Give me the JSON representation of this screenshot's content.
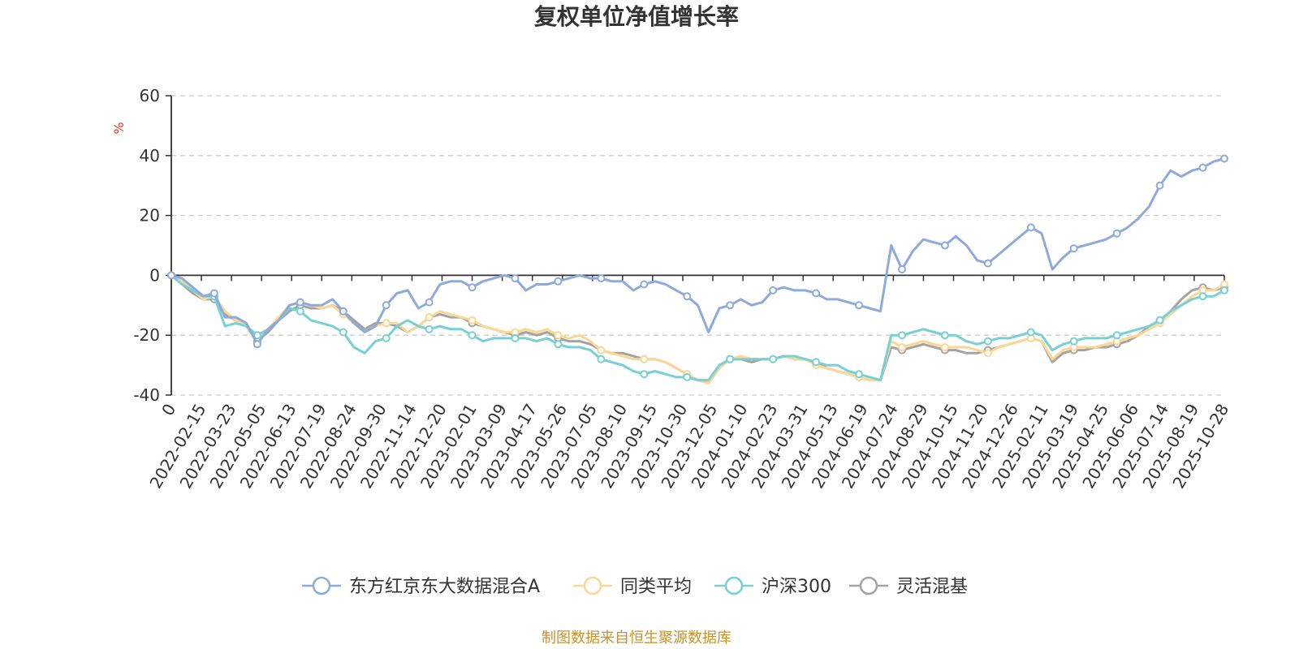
{
  "chart_data": {
    "type": "line",
    "title": "复权单位净值增长率",
    "y_unit": "%",
    "ylim": [
      -40,
      60
    ],
    "y_ticks": [
      -40,
      -20,
      0,
      20,
      40,
      60
    ],
    "grid": true,
    "legend_position": "bottom",
    "x_tick_labels": [
      "0",
      "2022-02-15",
      "2022-03-23",
      "2022-05-05",
      "2022-06-13",
      "2022-07-19",
      "2022-08-24",
      "2022-09-30",
      "2022-11-14",
      "2022-12-20",
      "2023-02-01",
      "2023-03-09",
      "2023-04-17",
      "2023-05-26",
      "2023-07-05",
      "2023-08-10",
      "2023-09-15",
      "2023-10-30",
      "2023-12-05",
      "2024-01-10",
      "2024-02-23",
      "2024-03-31",
      "2024-05-13",
      "2024-06-19",
      "2024-07-24",
      "2024-08-29",
      "2024-10-15",
      "2024-11-20",
      "2024-12-26",
      "2025-02-11",
      "2025-03-19",
      "2025-04-25",
      "2025-06-06",
      "2025-07-14",
      "2025-08-19",
      "2025-10-28"
    ],
    "series": [
      {
        "name": "东方红京东大数据混合A",
        "color": "#8eaadb",
        "values": [
          0,
          -1,
          -4,
          -7,
          -6,
          -14,
          -14,
          -16,
          -23,
          -18,
          -15,
          -10,
          -9,
          -10,
          -10,
          -8,
          -12,
          -16,
          -19,
          -17,
          -10,
          -6,
          -5,
          -11,
          -9,
          -3,
          -2,
          -2,
          -4,
          -2,
          -1,
          0,
          -1,
          -5,
          -3,
          -3,
          -2,
          -1,
          0,
          -1,
          -1,
          -2,
          -2,
          -5,
          -3,
          -2,
          -3,
          -5,
          -7,
          -10,
          -19,
          -11,
          -10,
          -8,
          -10,
          -9,
          -5,
          -4,
          -5,
          -5,
          -6,
          -8,
          -8,
          -9,
          -10,
          -11,
          -12,
          10,
          2,
          8,
          12,
          11,
          10,
          13,
          10,
          5,
          4,
          7,
          10,
          13,
          16,
          14,
          2,
          6,
          9,
          10,
          11,
          12,
          14,
          16,
          19,
          23,
          30,
          35,
          33,
          35,
          36,
          38,
          39
        ]
      },
      {
        "name": "同类平均",
        "color": "#fad795",
        "values": [
          0,
          -2,
          -5,
          -8,
          -7,
          -12,
          -15,
          -17,
          -21,
          -18,
          -14,
          -10,
          -9,
          -10,
          -11,
          -10,
          -13,
          -16,
          -19,
          -17,
          -16,
          -16,
          -19,
          -17,
          -14,
          -12,
          -13,
          -14,
          -15,
          -17,
          -18,
          -19,
          -19,
          -18,
          -19,
          -18,
          -20,
          -21,
          -20,
          -22,
          -25,
          -26,
          -27,
          -28,
          -28,
          -28,
          -29,
          -31,
          -33,
          -35,
          -36,
          -31,
          -28,
          -27,
          -28,
          -28,
          -28,
          -27,
          -28,
          -28,
          -30,
          -31,
          -32,
          -33,
          -34,
          -35,
          -35,
          -22,
          -24,
          -23,
          -22,
          -23,
          -24,
          -24,
          -24,
          -25,
          -26,
          -24,
          -23,
          -22,
          -21,
          -22,
          -28,
          -25,
          -24,
          -24,
          -24,
          -23,
          -22,
          -21,
          -20,
          -18,
          -16,
          -13,
          -10,
          -7,
          -5,
          -5,
          -3
        ]
      },
      {
        "name": "沪深300",
        "color": "#76d0d4",
        "values": [
          0,
          -3,
          -5,
          -7,
          -7,
          -17,
          -16,
          -17,
          -20,
          -18,
          -15,
          -11,
          -12,
          -15,
          -16,
          -17,
          -19,
          -24,
          -26,
          -22,
          -21,
          -17,
          -15,
          -17,
          -18,
          -17,
          -18,
          -18,
          -20,
          -22,
          -21,
          -21,
          -21,
          -21,
          -22,
          -21,
          -23,
          -24,
          -24,
          -25,
          -28,
          -29,
          -30,
          -32,
          -33,
          -32,
          -33,
          -34,
          -34,
          -35,
          -35,
          -30,
          -28,
          -28,
          -28,
          -28,
          -28,
          -27,
          -27,
          -28,
          -29,
          -30,
          -30,
          -32,
          -33,
          -34,
          -35,
          -20,
          -20,
          -19,
          -18,
          -19,
          -20,
          -20,
          -22,
          -23,
          -22,
          -21,
          -21,
          -20,
          -19,
          -20,
          -25,
          -23,
          -22,
          -21,
          -21,
          -21,
          -20,
          -19,
          -18,
          -17,
          -15,
          -12,
          -10,
          -8,
          -7,
          -7,
          -5
        ]
      },
      {
        "name": "灵活混基",
        "color": "#a3a3a3",
        "values": [
          0,
          -3,
          -6,
          -8,
          -8,
          -13,
          -15,
          -17,
          -22,
          -19,
          -15,
          -12,
          -10,
          -11,
          -11,
          -10,
          -12,
          -15,
          -18,
          -16,
          -16,
          -17,
          -19,
          -17,
          -14,
          -13,
          -14,
          -14,
          -16,
          -17,
          -18,
          -19,
          -20,
          -19,
          -20,
          -19,
          -21,
          -22,
          -22,
          -23,
          -25,
          -26,
          -26,
          -27,
          -28,
          -28,
          -29,
          -31,
          -33,
          -35,
          -36,
          -31,
          -28,
          -28,
          -29,
          -28,
          -28,
          -27,
          -28,
          -28,
          -29,
          -31,
          -32,
          -33,
          -34,
          -35,
          -35,
          -24,
          -25,
          -24,
          -23,
          -24,
          -25,
          -25,
          -26,
          -26,
          -25,
          -24,
          -23,
          -22,
          -21,
          -22,
          -29,
          -26,
          -25,
          -25,
          -24,
          -24,
          -23,
          -22,
          -20,
          -17,
          -15,
          -12,
          -8,
          -5,
          -4,
          -5,
          -4
        ]
      }
    ]
  },
  "source_text": "制图数据来自恒生聚源数据库"
}
